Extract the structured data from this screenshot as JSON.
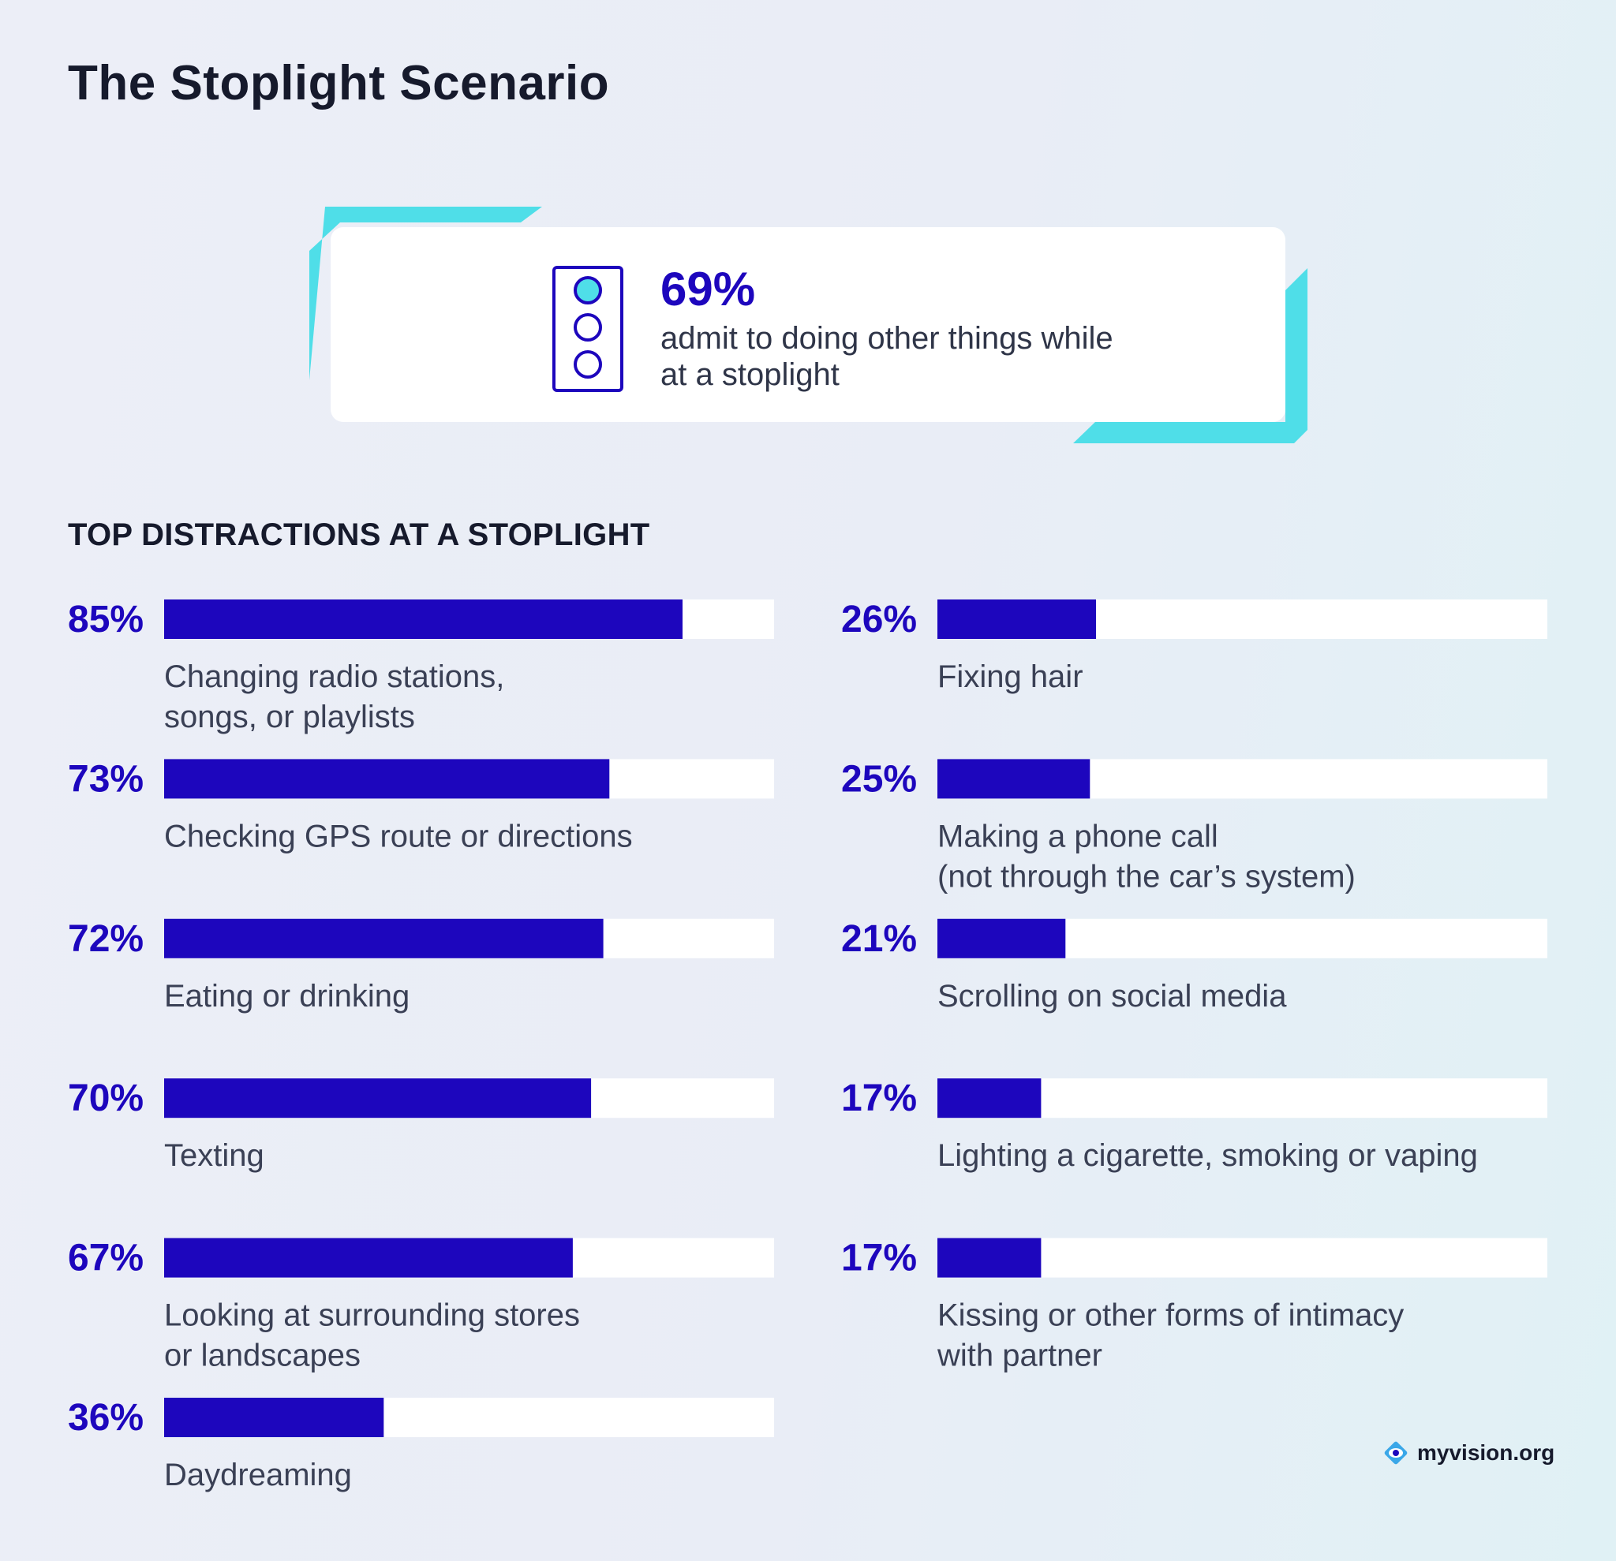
{
  "title": "The Stoplight Scenario",
  "callout": {
    "value": "69%",
    "text": "admit to doing other things while at a stoplight"
  },
  "section_title": "TOP DISTRACTIONS AT A STOPLIGHT",
  "logo": {
    "text": "myvision.org",
    "icon": "eye-logo-icon"
  },
  "colors": {
    "bar": "#1d06bd",
    "track": "#ffffff",
    "accent": "#4fdee8",
    "value": "#1d06bd",
    "label": "#3a4055"
  },
  "chart_data": {
    "type": "bar",
    "orientation": "horizontal",
    "title": "TOP DISTRACTIONS AT A STOPLIGHT",
    "unit": "%",
    "xlim": [
      0,
      100
    ],
    "columns": [
      {
        "items": [
          {
            "value": 85,
            "label": "85%",
            "lines": [
              "Changing radio stations,",
              "songs, or playlists"
            ]
          },
          {
            "value": 73,
            "label": "73%",
            "lines": [
              "Checking GPS route or directions"
            ]
          },
          {
            "value": 72,
            "label": "72%",
            "lines": [
              "Eating or drinking"
            ]
          },
          {
            "value": 70,
            "label": "70%",
            "lines": [
              "Texting"
            ]
          },
          {
            "value": 67,
            "label": "67%",
            "lines": [
              "Looking at surrounding stores",
              "or landscapes"
            ]
          },
          {
            "value": 36,
            "label": "36%",
            "lines": [
              "Daydreaming"
            ]
          }
        ]
      },
      {
        "items": [
          {
            "value": 26,
            "label": "26%",
            "lines": [
              "Fixing hair"
            ]
          },
          {
            "value": 25,
            "label": "25%",
            "lines": [
              "Making a phone call",
              "(not through the car’s system)"
            ]
          },
          {
            "value": 21,
            "label": "21%",
            "lines": [
              "Scrolling on social media"
            ]
          },
          {
            "value": 17,
            "label": "17%",
            "lines": [
              "Lighting a cigarette, smoking or vaping"
            ]
          },
          {
            "value": 17,
            "label": "17%",
            "lines": [
              "Kissing or other forms of intimacy",
              "with partner"
            ]
          }
        ]
      }
    ]
  }
}
